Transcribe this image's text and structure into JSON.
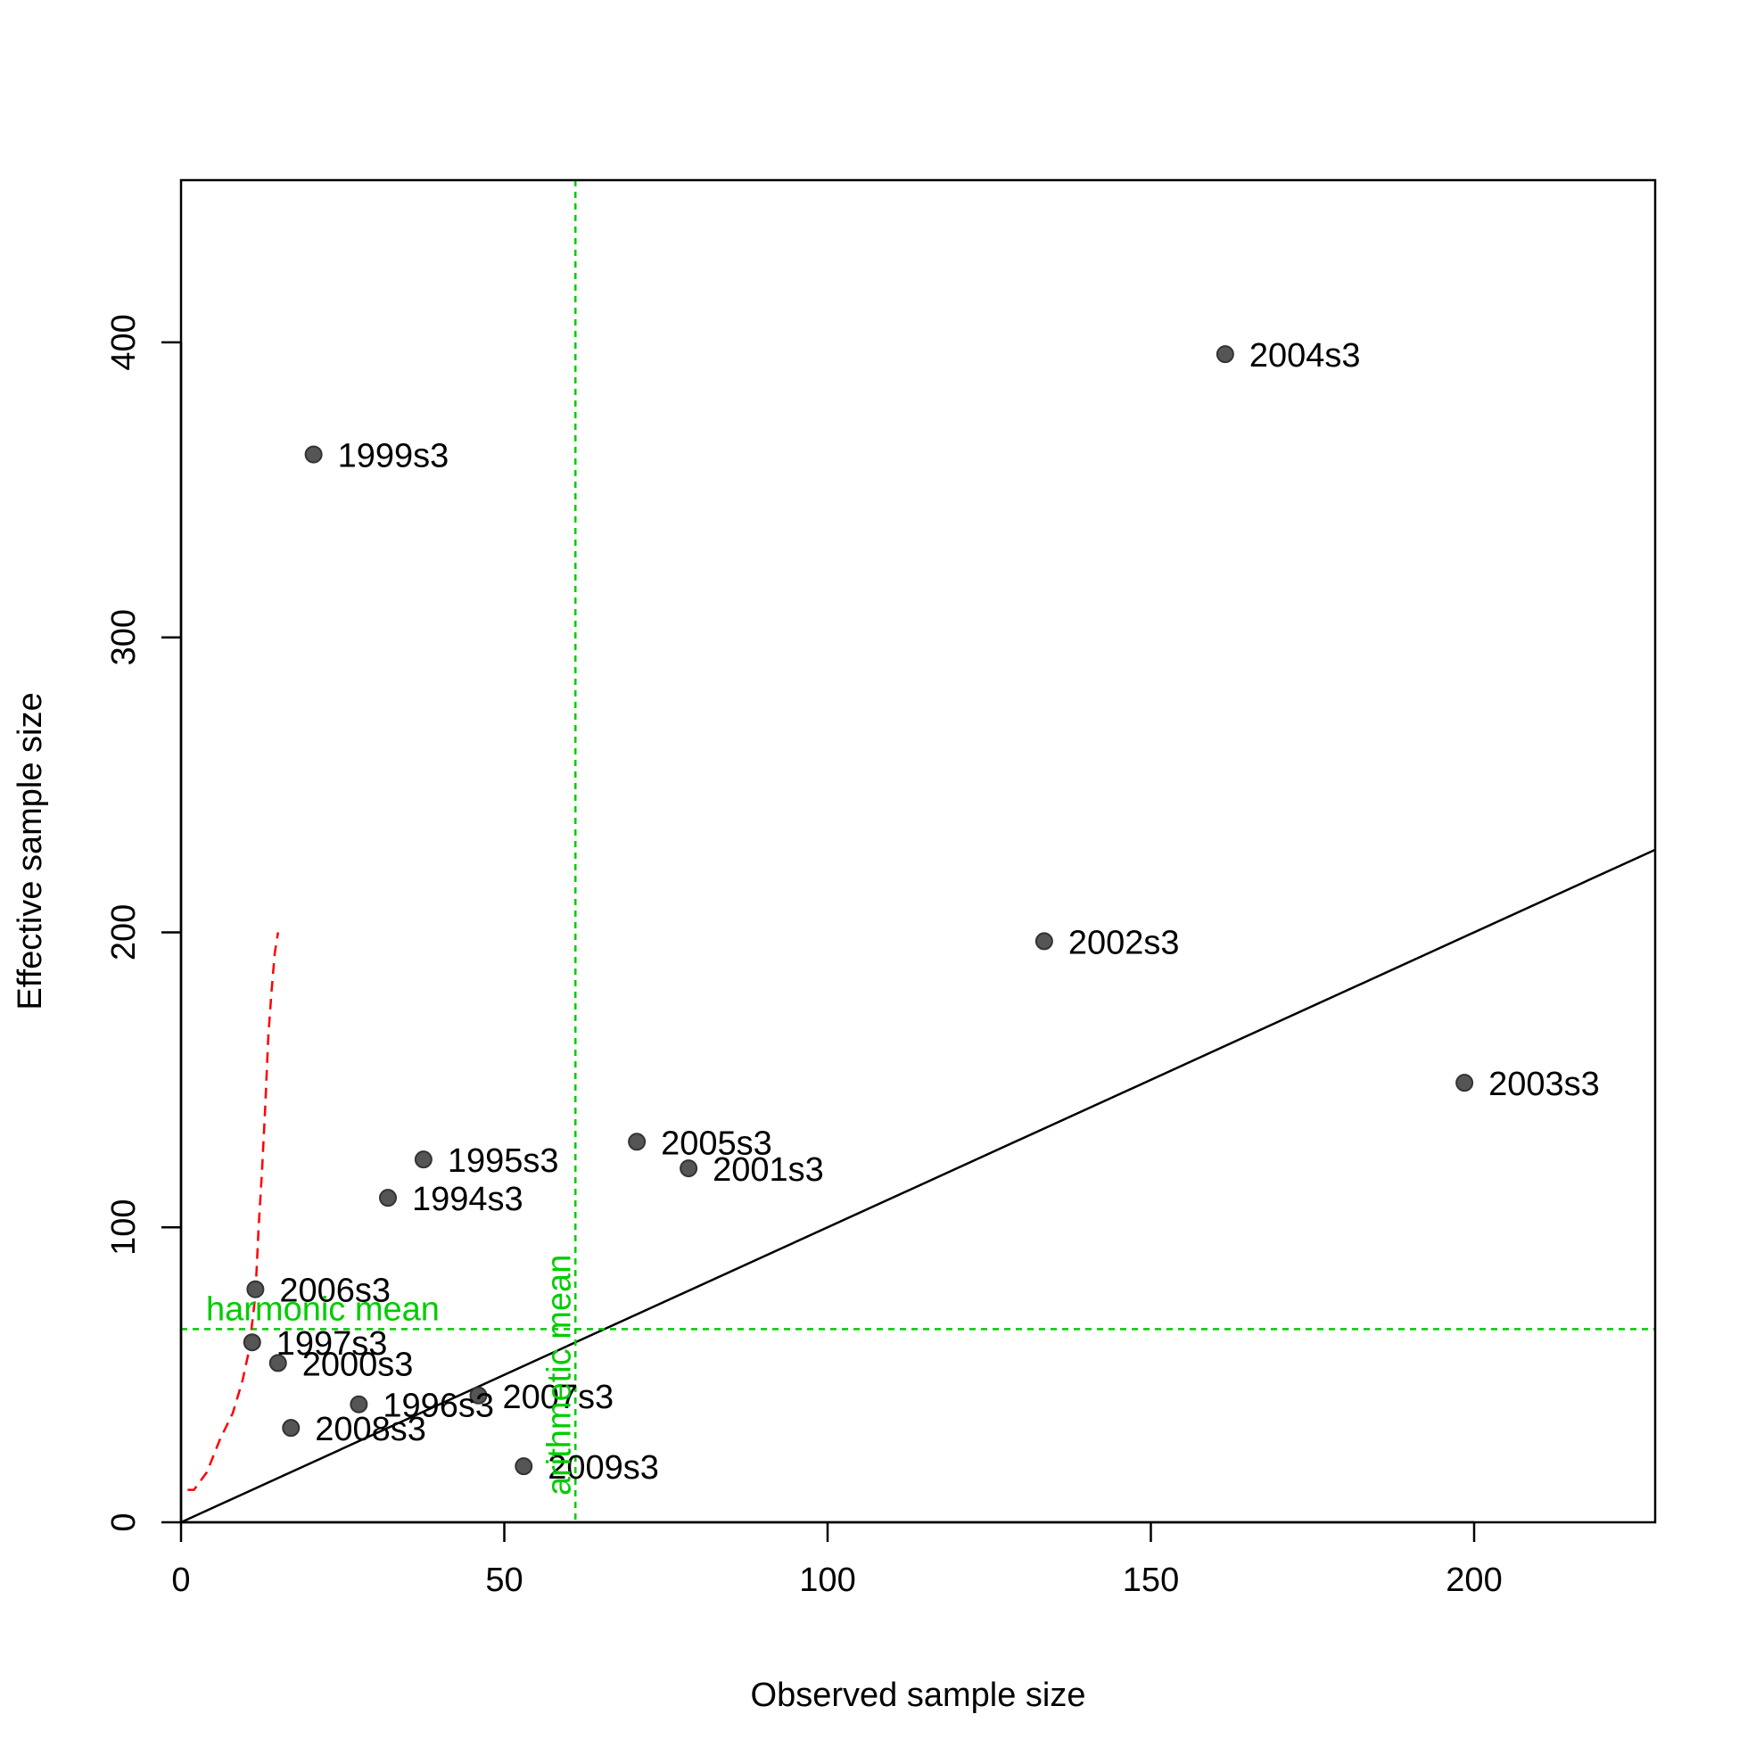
{
  "chart_data": {
    "type": "scatter",
    "title": "",
    "xlabel": "Observed sample size",
    "ylabel": "Effective sample size",
    "xlim": [
      0,
      228
    ],
    "ylim": [
      0,
      455
    ],
    "x_ticks": [
      0,
      50,
      100,
      150,
      200
    ],
    "y_ticks": [
      0,
      100,
      200,
      300,
      400
    ],
    "grid": false,
    "colors": {
      "points": "#555555",
      "reference_lines": "#00cc00",
      "smoother": "#ff0000",
      "identity_line": "#000000"
    },
    "points": [
      {
        "label": "1994s3",
        "x": 32,
        "y": 110
      },
      {
        "label": "1995s3",
        "x": 37.5,
        "y": 123
      },
      {
        "label": "1996s3",
        "x": 27.5,
        "y": 40
      },
      {
        "label": "1997s3",
        "x": 11,
        "y": 61
      },
      {
        "label": "1999s3",
        "x": 20.5,
        "y": 362
      },
      {
        "label": "2000s3",
        "x": 15,
        "y": 54
      },
      {
        "label": "2001s3",
        "x": 78.5,
        "y": 120
      },
      {
        "label": "2002s3",
        "x": 133.5,
        "y": 197
      },
      {
        "label": "2003s3",
        "x": 198.5,
        "y": 149
      },
      {
        "label": "2004s3",
        "x": 161.5,
        "y": 396
      },
      {
        "label": "2005s3",
        "x": 70.5,
        "y": 129
      },
      {
        "label": "2006s3",
        "x": 11.5,
        "y": 79
      },
      {
        "label": "2007s3",
        "x": 46,
        "y": 43
      },
      {
        "label": "2008s3",
        "x": 17,
        "y": 32
      },
      {
        "label": "2009s3",
        "x": 53,
        "y": 19
      }
    ],
    "identity_line": {
      "x": [
        0,
        228
      ],
      "y": [
        0,
        228
      ]
    },
    "harmonic_mean": {
      "label": "harmonic mean",
      "y": 65.5
    },
    "arithmetic_mean": {
      "label": "arithmetic mean",
      "x": 61
    },
    "smoother": {
      "x": [
        1,
        2,
        4,
        6,
        8,
        9.5,
        10.5,
        11.5,
        12,
        12.5,
        13,
        13.5,
        14,
        14.5,
        15
      ],
      "y": [
        11,
        11,
        17,
        28,
        37,
        48,
        58,
        77,
        100,
        118,
        140,
        165,
        180,
        193,
        200
      ]
    }
  }
}
